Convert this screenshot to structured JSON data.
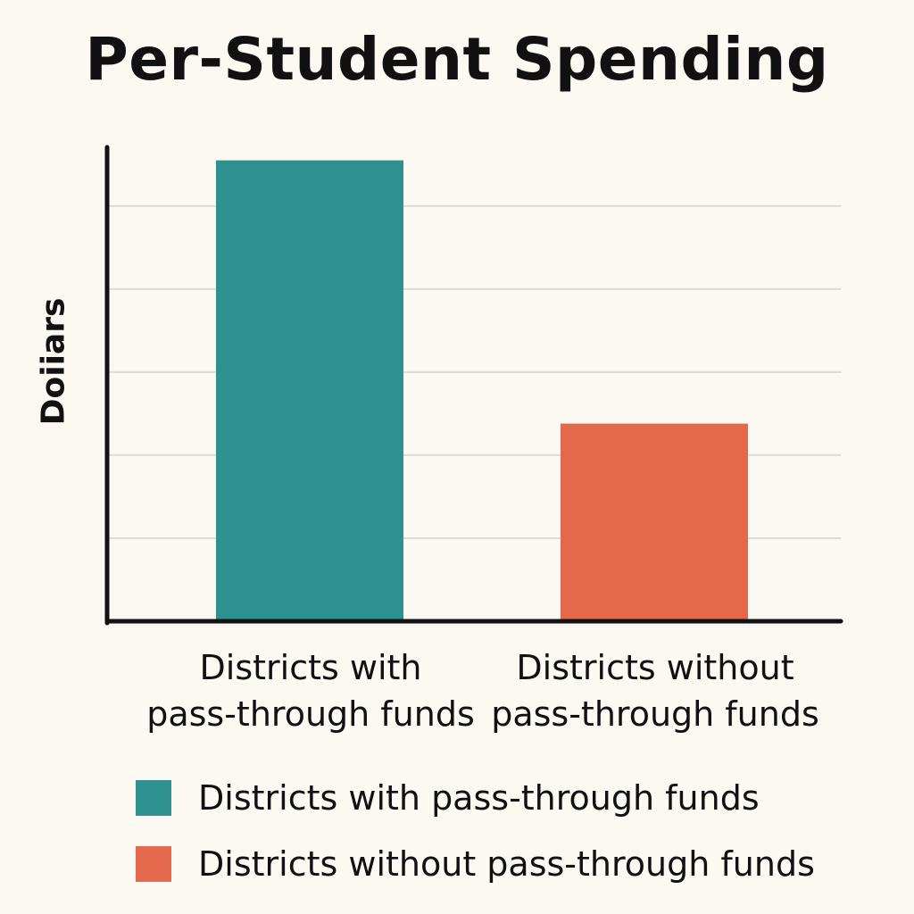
{
  "chart_data": {
    "type": "bar",
    "title": "Per-Student Spending",
    "ylabel": "Doiiars",
    "xlabel": "",
    "categories": [
      "Districts with\npass-through funds",
      "Districts without\npass-through funds"
    ],
    "values": [
      555,
      238
    ],
    "ylim": [
      0,
      560
    ],
    "gridlines": [
      100,
      200,
      300,
      400,
      500
    ],
    "grid": true,
    "legend_position": "bottom",
    "legend": [
      {
        "label": "Districts with pass-through funds",
        "color": "#2f9090"
      },
      {
        "label": "Districts without pass-through funds",
        "color": "#e4694c"
      }
    ],
    "colors": [
      "#2f9090",
      "#e4694c"
    ]
  }
}
